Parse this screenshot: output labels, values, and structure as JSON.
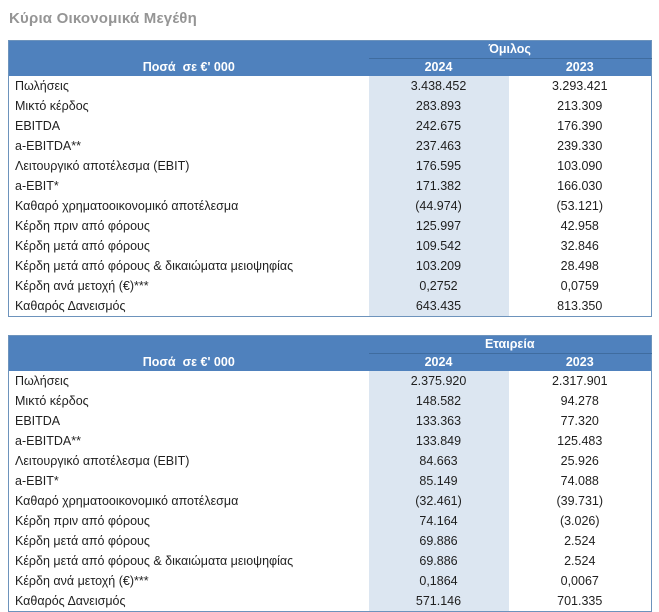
{
  "page_title": "Κύρια Οικονομικά Μεγέθη",
  "colors": {
    "header_blue": "#4f81bd",
    "header_divider_blue": "#3f6c9f",
    "highlight_column_blue": "#dce6f1",
    "table_border_blue": "#6d93bc",
    "title_gray": "#959595",
    "body_text": "#1f1f1f"
  },
  "chart_data": {
    "type": "table",
    "title": "Κύρια Οικονομικά Μεγέθη",
    "tables": [
      "Όμιλος",
      "Εταιρεία"
    ],
    "columns": [
      "Ποσά  σε €' 000",
      "2024",
      "2023"
    ]
  },
  "tables": [
    {
      "scope_label": "Όμιλος",
      "unit_label": "Ποσά  σε €' 000",
      "col_2024": "2024",
      "col_2023": "2023",
      "rows": [
        {
          "label": "Πωλήσεις",
          "y2024": "3.438.452",
          "y2023": "3.293.421"
        },
        {
          "label": "Μικτό κέρδος",
          "y2024": "283.893",
          "y2023": "213.309"
        },
        {
          "label": "EBITDA",
          "y2024": "242.675",
          "y2023": "176.390"
        },
        {
          "label": "a-EBITDA**",
          "y2024": "237.463",
          "y2023": "239.330"
        },
        {
          "label": "Λειτουργικό αποτέλεσμα (EBIT)",
          "y2024": "176.595",
          "y2023": "103.090"
        },
        {
          "label": "a-EBIT*",
          "y2024": "171.382",
          "y2023": "166.030"
        },
        {
          "label": "Καθαρό χρηματοοικονομικό αποτέλεσμα",
          "y2024": "(44.974)",
          "y2023": "(53.121)"
        },
        {
          "label": "Κέρδη πριν από φόρους",
          "y2024": "125.997",
          "y2023": "42.958"
        },
        {
          "label": "Κέρδη μετά από φόρους",
          "y2024": "109.542",
          "y2023": "32.846"
        },
        {
          "label": "Κέρδη μετά από φόρους & δικαιώματα μειοψηφίας",
          "y2024": "103.209",
          "y2023": "28.498"
        },
        {
          "label": "Κέρδη ανά μετοχή (€)***",
          "y2024": "0,2752",
          "y2023": "0,0759"
        },
        {
          "label": "Καθαρός Δανεισμός",
          "y2024": "643.435",
          "y2023": "813.350"
        }
      ]
    },
    {
      "scope_label": "Εταιρεία",
      "unit_label": "Ποσά  σε €' 000",
      "col_2024": "2024",
      "col_2023": "2023",
      "rows": [
        {
          "label": "Πωλήσεις",
          "y2024": "2.375.920",
          "y2023": "2.317.901"
        },
        {
          "label": "Μικτό κέρδος",
          "y2024": "148.582",
          "y2023": "94.278"
        },
        {
          "label": "EBITDA",
          "y2024": "133.363",
          "y2023": "77.320"
        },
        {
          "label": "a-EBITDA**",
          "y2024": "133.849",
          "y2023": "125.483"
        },
        {
          "label": "Λειτουργικό αποτέλεσμα (EBIT)",
          "y2024": "84.663",
          "y2023": "25.926"
        },
        {
          "label": "a-EBIT*",
          "y2024": "85.149",
          "y2023": "74.088"
        },
        {
          "label": "Καθαρό χρηματοοικονομικό αποτέλεσμα",
          "y2024": "(32.461)",
          "y2023": "(39.731)"
        },
        {
          "label": "Κέρδη πριν από φόρους",
          "y2024": "74.164",
          "y2023": "(3.026)"
        },
        {
          "label": "Κέρδη μετά από φόρους",
          "y2024": "69.886",
          "y2023": "2.524"
        },
        {
          "label": "Κέρδη μετά από φόρους & δικαιώματα μειοψηφίας",
          "y2024": "69.886",
          "y2023": "2.524"
        },
        {
          "label": "Κέρδη ανά μετοχή (€)***",
          "y2024": "0,1864",
          "y2023": "0,0067"
        },
        {
          "label": "Καθαρός Δανεισμός",
          "y2024": "571.146",
          "y2023": "701.335"
        }
      ]
    }
  ]
}
